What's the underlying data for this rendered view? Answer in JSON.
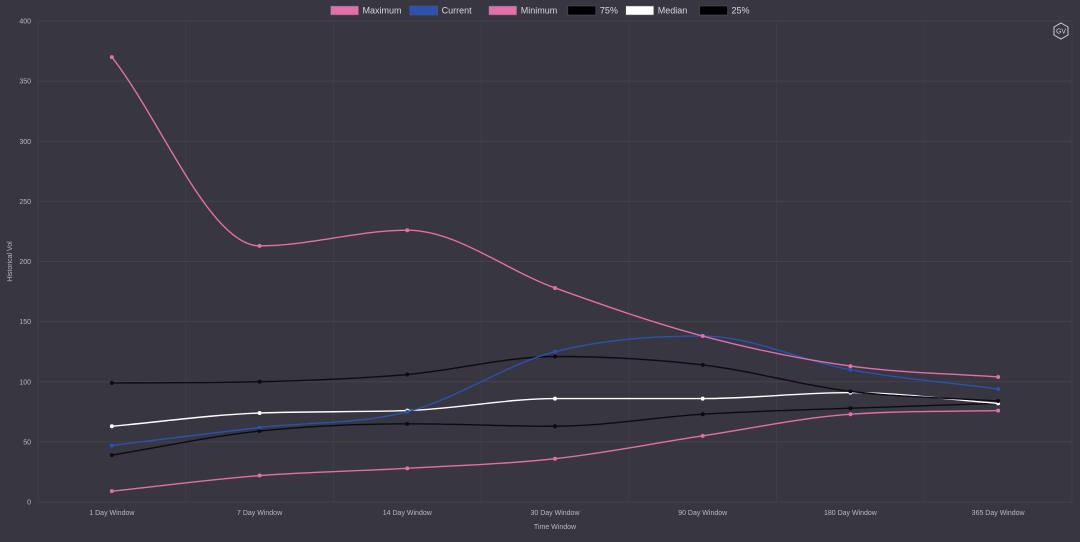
{
  "chart_data": {
    "type": "line",
    "xlabel": "Time Window",
    "ylabel": "Historical Vol",
    "categories": [
      "1 Day Window",
      "7 Day Window",
      "14 Day Window",
      "30 Day Window",
      "90 Day Window",
      "180 Day Window",
      "365 Day Window"
    ],
    "ylim": [
      0,
      400
    ],
    "yticks": [
      0,
      50,
      100,
      150,
      200,
      250,
      300,
      350,
      400
    ],
    "grid": true,
    "legend_position": "top",
    "series": [
      {
        "name": "Maximum",
        "color": "#e070a8",
        "values": [
          370,
          213,
          226,
          178,
          138,
          113,
          104
        ]
      },
      {
        "name": "Current",
        "color": "#2a52b0",
        "values": [
          47,
          62,
          75,
          125,
          138,
          110,
          94
        ]
      },
      {
        "name": "Minimum",
        "color": "#e070a8",
        "values": [
          9,
          22,
          28,
          36,
          55,
          73,
          76
        ]
      },
      {
        "name": "75%",
        "color": "#000000",
        "values": [
          99,
          100,
          106,
          121,
          114,
          92,
          84
        ]
      },
      {
        "name": "Median",
        "color": "#ffffff",
        "values": [
          63,
          74,
          76,
          86,
          86,
          91,
          82
        ]
      },
      {
        "name": "25%",
        "color": "#000000",
        "values": [
          39,
          59,
          65,
          63,
          73,
          78,
          82
        ]
      }
    ]
  },
  "logo": {
    "text": "GV",
    "icon": "hexagon-logo-icon"
  }
}
